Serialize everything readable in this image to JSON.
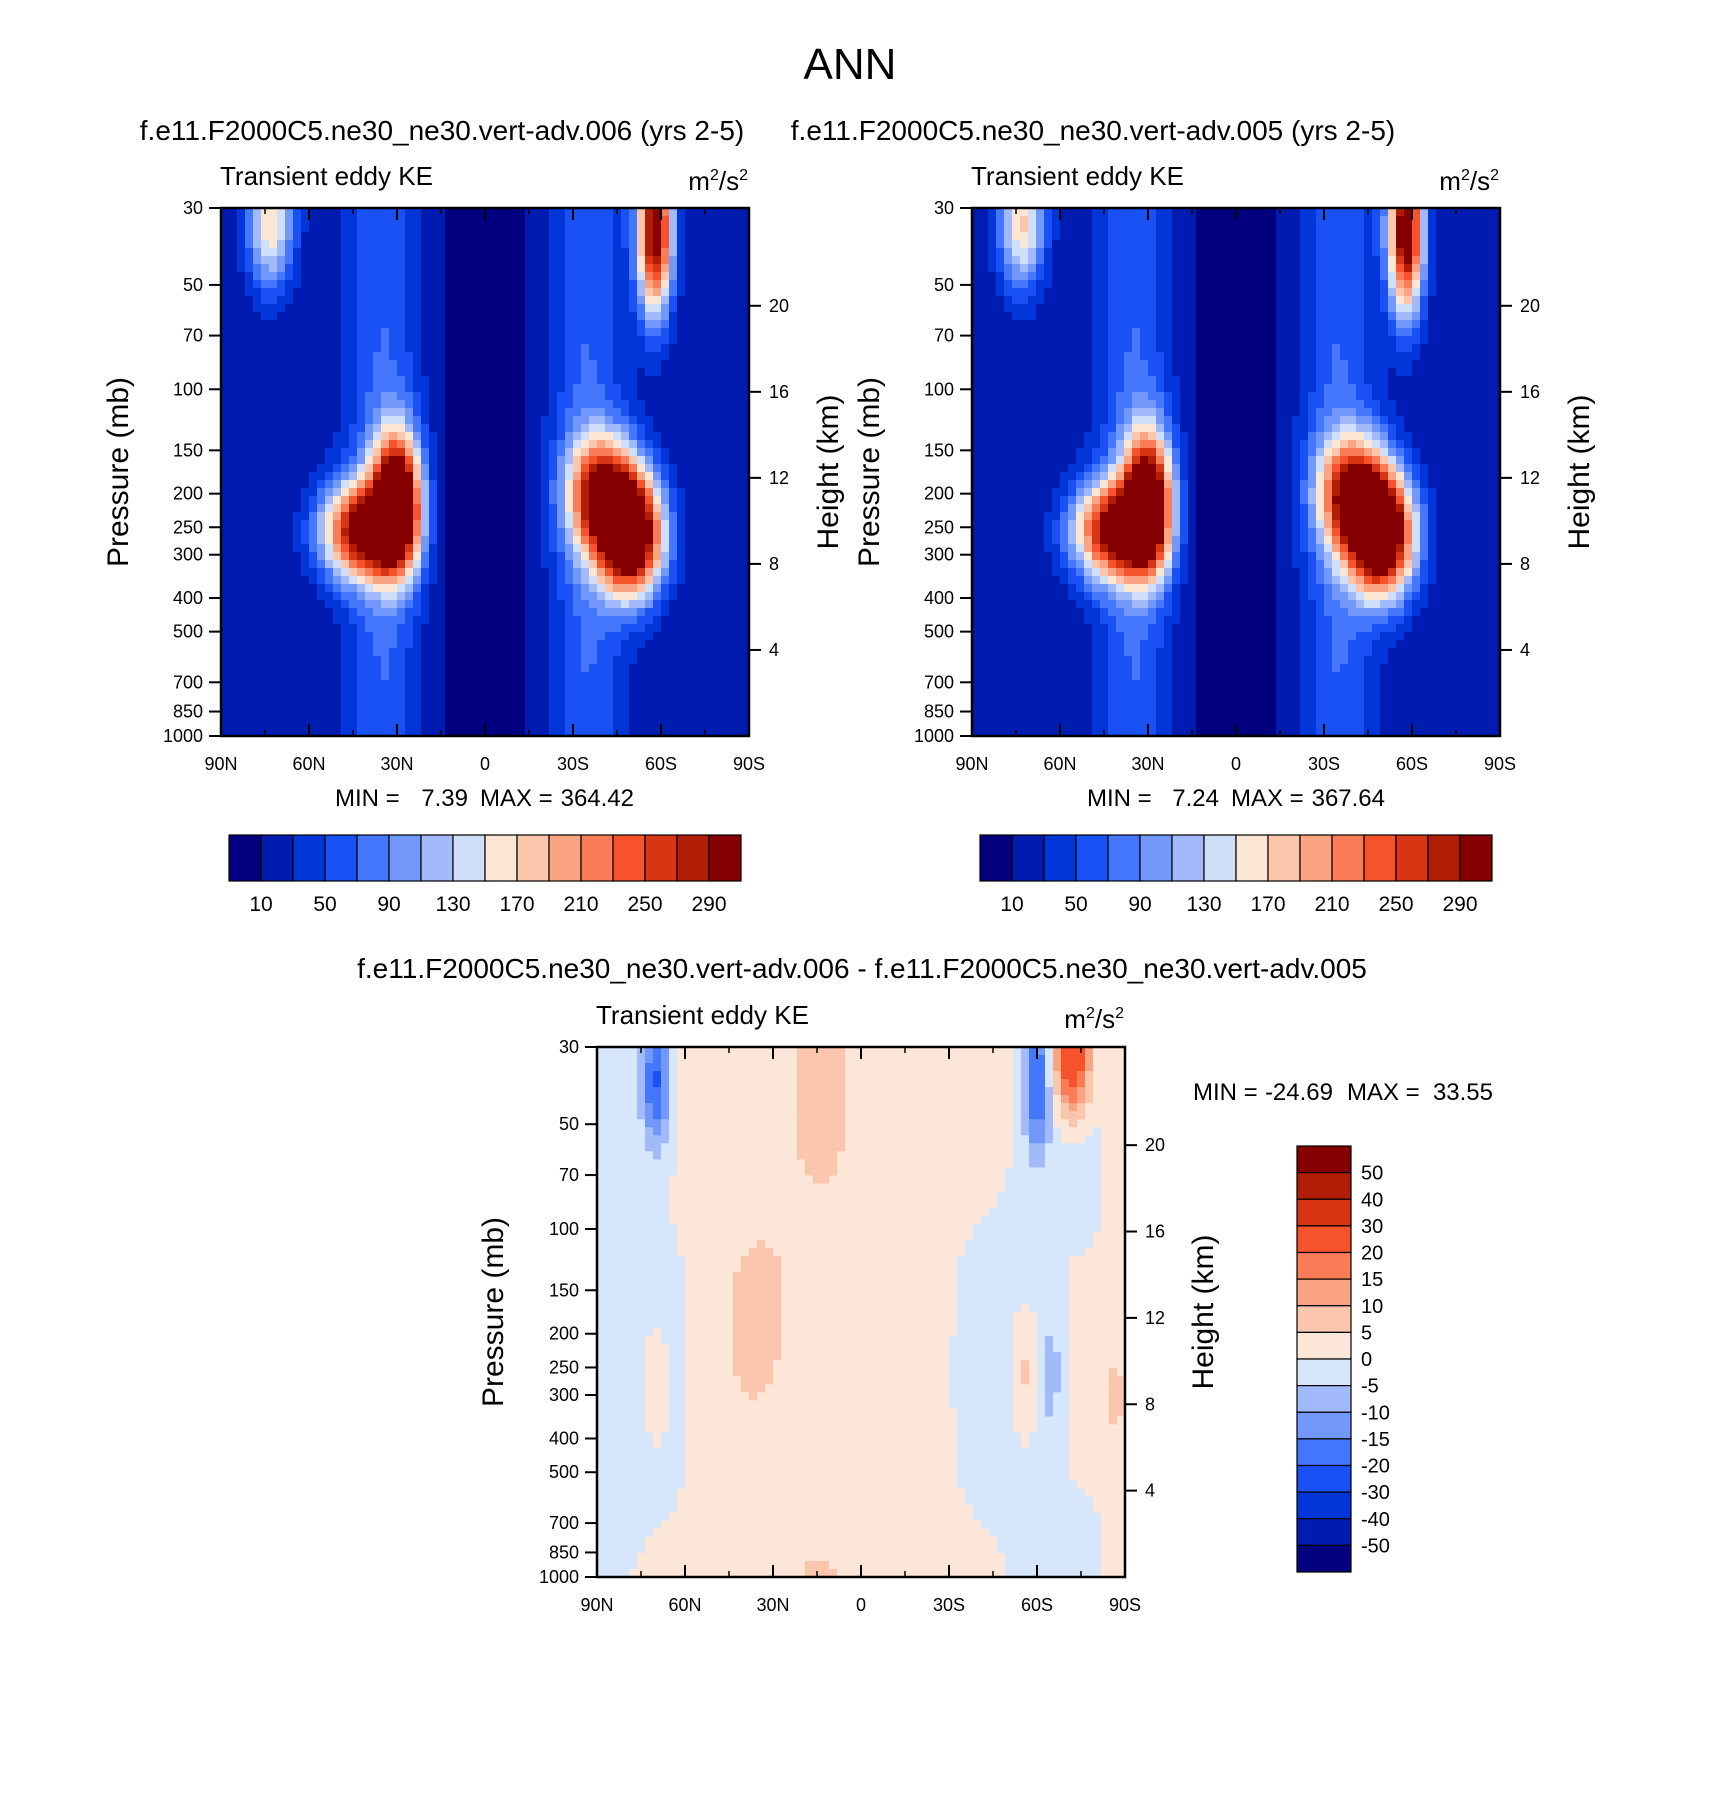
{
  "figure_title": "ANN",
  "chart_data": [
    {
      "type": "heatmap",
      "plot_kind": "filled-contour",
      "title": "f.e11.F2000C5.ne30_ne30.vert-adv.006 (yrs 2-5)",
      "left_label": "Transient eddy KE",
      "units": "m²/s²",
      "units_base": "m",
      "units_mid": "/s",
      "units_sup": "2",
      "xlabel": "",
      "ylabel": "Pressure (mb)",
      "y2label": "Height (km)",
      "x_ticks": [
        "90N",
        "60N",
        "30N",
        "0",
        "30S",
        "60S",
        "90S"
      ],
      "y_ticks": [
        "30",
        "50",
        "70",
        "100",
        "150",
        "200",
        "250",
        "300",
        "400",
        "500",
        "700",
        "850",
        "1000"
      ],
      "y2_ticks": [
        "20",
        "16",
        "12",
        "8",
        "4"
      ],
      "ylim_mb": [
        1000,
        30
      ],
      "min_label": "MIN =",
      "min_value": "7.39",
      "max_label": "MAX =",
      "max_value": "364.42",
      "colorbar_labels": [
        "10",
        "50",
        "90",
        "130",
        "170",
        "210",
        "250",
        "290"
      ],
      "features": [
        {
          "lat": 30,
          "p": 210,
          "value": 340
        },
        {
          "lat": 42,
          "p": 255,
          "value": 290
        },
        {
          "lat": -50,
          "p": 265,
          "value": 364
        },
        {
          "lat": -40,
          "p": 200,
          "value": 250
        },
        {
          "lat": -58,
          "p": 35,
          "value": 320
        },
        {
          "lat": 73,
          "p": 33,
          "value": 170
        },
        {
          "lat": 0,
          "p": 55,
          "value": 10
        },
        {
          "lat": 0,
          "p": 800,
          "value": 8
        }
      ]
    },
    {
      "type": "heatmap",
      "plot_kind": "filled-contour",
      "title": "f.e11.F2000C5.ne30_ne30.vert-adv.005 (yrs 2-5)",
      "left_label": "Transient eddy KE",
      "units": "m²/s²",
      "units_base": "m",
      "units_mid": "/s",
      "units_sup": "2",
      "xlabel": "",
      "ylabel": "Pressure (mb)",
      "y2label": "Height (km)",
      "x_ticks": [
        "90N",
        "60N",
        "30N",
        "0",
        "30S",
        "60S",
        "90S"
      ],
      "y_ticks": [
        "30",
        "50",
        "70",
        "100",
        "150",
        "200",
        "250",
        "300",
        "400",
        "500",
        "700",
        "850",
        "1000"
      ],
      "y2_ticks": [
        "20",
        "16",
        "12",
        "8",
        "4"
      ],
      "ylim_mb": [
        1000,
        30
      ],
      "min_label": "MIN =",
      "min_value": "7.24",
      "max_label": "MAX =",
      "max_value": "367.64",
      "colorbar_labels": [
        "10",
        "50",
        "90",
        "130",
        "170",
        "210",
        "250",
        "290"
      ],
      "features": [
        {
          "lat": 30,
          "p": 210,
          "value": 335
        },
        {
          "lat": 42,
          "p": 255,
          "value": 285
        },
        {
          "lat": -50,
          "p": 265,
          "value": 367
        },
        {
          "lat": -40,
          "p": 200,
          "value": 255
        },
        {
          "lat": -58,
          "p": 35,
          "value": 330
        },
        {
          "lat": 73,
          "p": 33,
          "value": 175
        },
        {
          "lat": 0,
          "p": 55,
          "value": 10
        },
        {
          "lat": 0,
          "p": 800,
          "value": 8
        }
      ]
    },
    {
      "type": "heatmap",
      "plot_kind": "filled-contour-difference",
      "title": "f.e11.F2000C5.ne30_ne30.vert-adv.006 - f.e11.F2000C5.ne30_ne30.vert-adv.005",
      "left_label": "Transient eddy KE",
      "units": "m²/s²",
      "units_base": "m",
      "units_mid": "/s",
      "units_sup": "2",
      "xlabel": "",
      "ylabel": "Pressure (mb)",
      "y2label": "Height (km)",
      "x_ticks": [
        "90N",
        "60N",
        "30N",
        "0",
        "30S",
        "60S",
        "90S"
      ],
      "y_ticks": [
        "30",
        "50",
        "70",
        "100",
        "150",
        "200",
        "250",
        "300",
        "400",
        "500",
        "700",
        "850",
        "1000"
      ],
      "y2_ticks": [
        "20",
        "16",
        "12",
        "8",
        "4"
      ],
      "ylim_mb": [
        1000,
        30
      ],
      "min_label": "MIN =",
      "min_value": "-24.69",
      "max_label": "MAX =",
      "max_value": "33.55",
      "colorbar_labels": [
        "50",
        "40",
        "30",
        "20",
        "15",
        "10",
        "5",
        "0",
        "-5",
        "-10",
        "-15",
        "-20",
        "-30",
        "-40",
        "-50"
      ],
      "features": [
        {
          "lat": 70,
          "p": 38,
          "value": -22
        },
        {
          "lat": -60,
          "p": 38,
          "value": -20
        },
        {
          "lat": -72,
          "p": 33,
          "value": 30
        },
        {
          "lat": 70,
          "p": 280,
          "value": 7
        },
        {
          "lat": -55,
          "p": 260,
          "value": 7
        },
        {
          "lat": -87,
          "p": 300,
          "value": 7
        },
        {
          "lat": 35,
          "p": 170,
          "value": 6
        },
        {
          "lat": -65,
          "p": 260,
          "value": -8
        }
      ]
    }
  ],
  "colors": {
    "kepalette": [
      "#02007f",
      "#001cb0",
      "#0336d8",
      "#1a51f4",
      "#4477fb",
      "#7398fb",
      "#a3bafa",
      "#cfdffa",
      "#fbe5d3",
      "#fcc6ad",
      "#fba484",
      "#fa7c56",
      "#f6522b",
      "#d73514",
      "#b11d07",
      "#850000"
    ],
    "diffpalette": [
      "#02007f",
      "#001cb0",
      "#0336d8",
      "#1a51f4",
      "#4477fb",
      "#7398fb",
      "#a3bafa",
      "#d6e6fb",
      "#fce6d8",
      "#fcc6ad",
      "#fba484",
      "#fa7c56",
      "#f6522b",
      "#d73514",
      "#b11d07",
      "#850000"
    ]
  }
}
